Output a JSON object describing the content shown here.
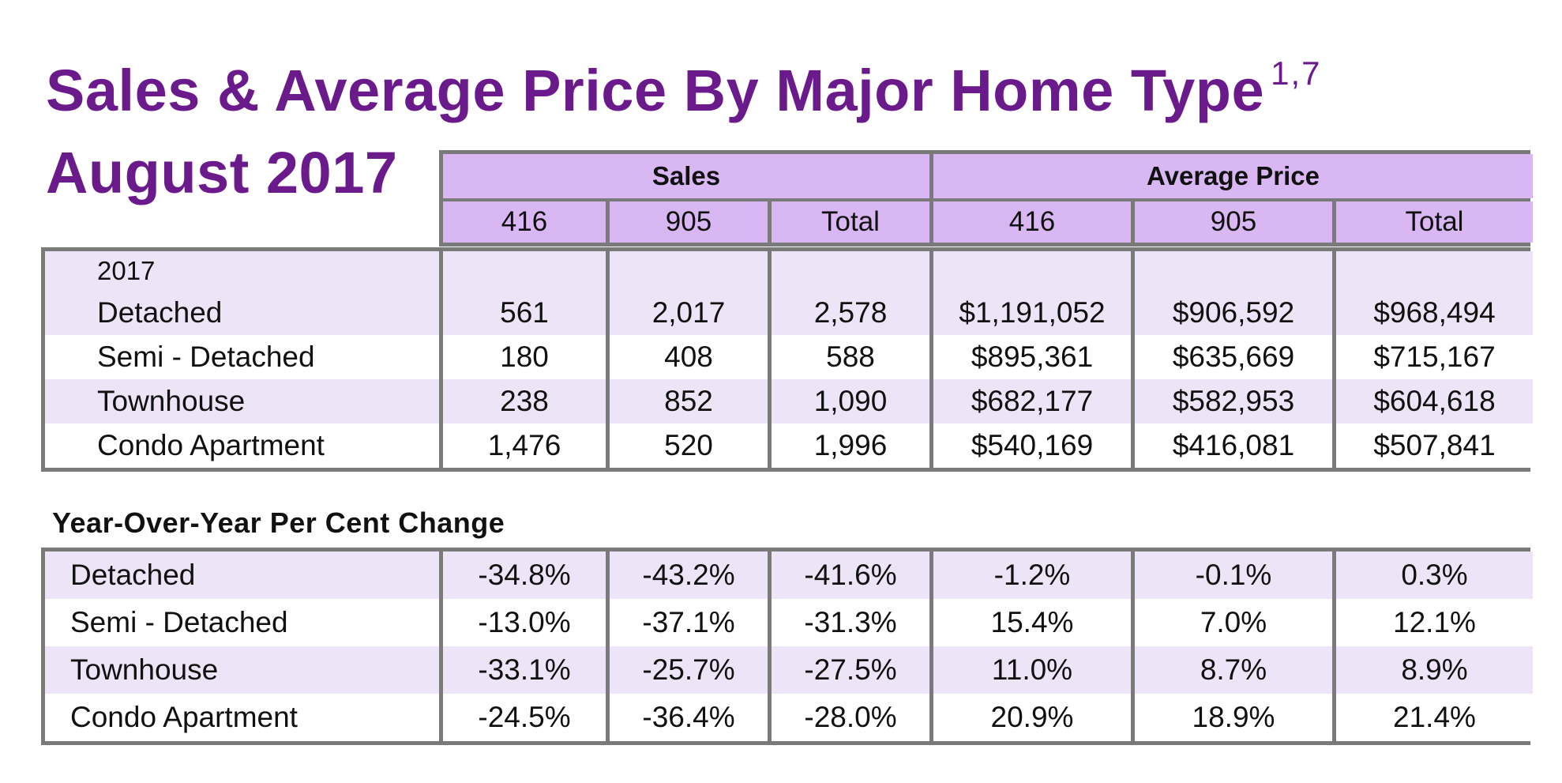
{
  "title": {
    "line1": "Sales & Average Price By Major Home Type",
    "superscript": "1,7",
    "line2": "August 2017"
  },
  "header": {
    "groups": [
      "Sales",
      "Average Price"
    ],
    "subcolumns": [
      "416",
      "905",
      "Total",
      "416",
      "905",
      "Total"
    ]
  },
  "main_table": {
    "year": "2017",
    "rows": [
      {
        "label": "Detached",
        "values": [
          "561",
          "2,017",
          "2,578",
          "$1,191,052",
          "$906,592",
          "$968,494"
        ]
      },
      {
        "label": "Semi - Detached",
        "values": [
          "180",
          "408",
          "588",
          "$895,361",
          "$635,669",
          "$715,167"
        ]
      },
      {
        "label": "Townhouse",
        "values": [
          "238",
          "852",
          "1,090",
          "$682,177",
          "$582,953",
          "$604,618"
        ]
      },
      {
        "label": "Condo Apartment",
        "values": [
          "1,476",
          "520",
          "1,996",
          "$540,169",
          "$416,081",
          "$507,841"
        ]
      }
    ]
  },
  "yoy_table": {
    "title": "Year-Over-Year Per Cent Change",
    "rows": [
      {
        "label": "Detached",
        "values": [
          "-34.8%",
          "-43.2%",
          "-41.6%",
          "-1.2%",
          "-0.1%",
          "0.3%"
        ]
      },
      {
        "label": "Semi - Detached",
        "values": [
          "-13.0%",
          "-37.1%",
          "-31.3%",
          "15.4%",
          "7.0%",
          "12.1%"
        ]
      },
      {
        "label": "Townhouse",
        "values": [
          "-33.1%",
          "-25.7%",
          "-27.5%",
          "11.0%",
          "8.7%",
          "8.9%"
        ]
      },
      {
        "label": "Condo Apartment",
        "values": [
          "-24.5%",
          "-36.4%",
          "-28.0%",
          "20.9%",
          "18.9%",
          "21.4%"
        ]
      }
    ]
  },
  "colors": {
    "title": "#6b1a8c",
    "header_fill": "#d8b7f2",
    "stripe": "#ede4f7",
    "border": "#7a7a7a"
  }
}
